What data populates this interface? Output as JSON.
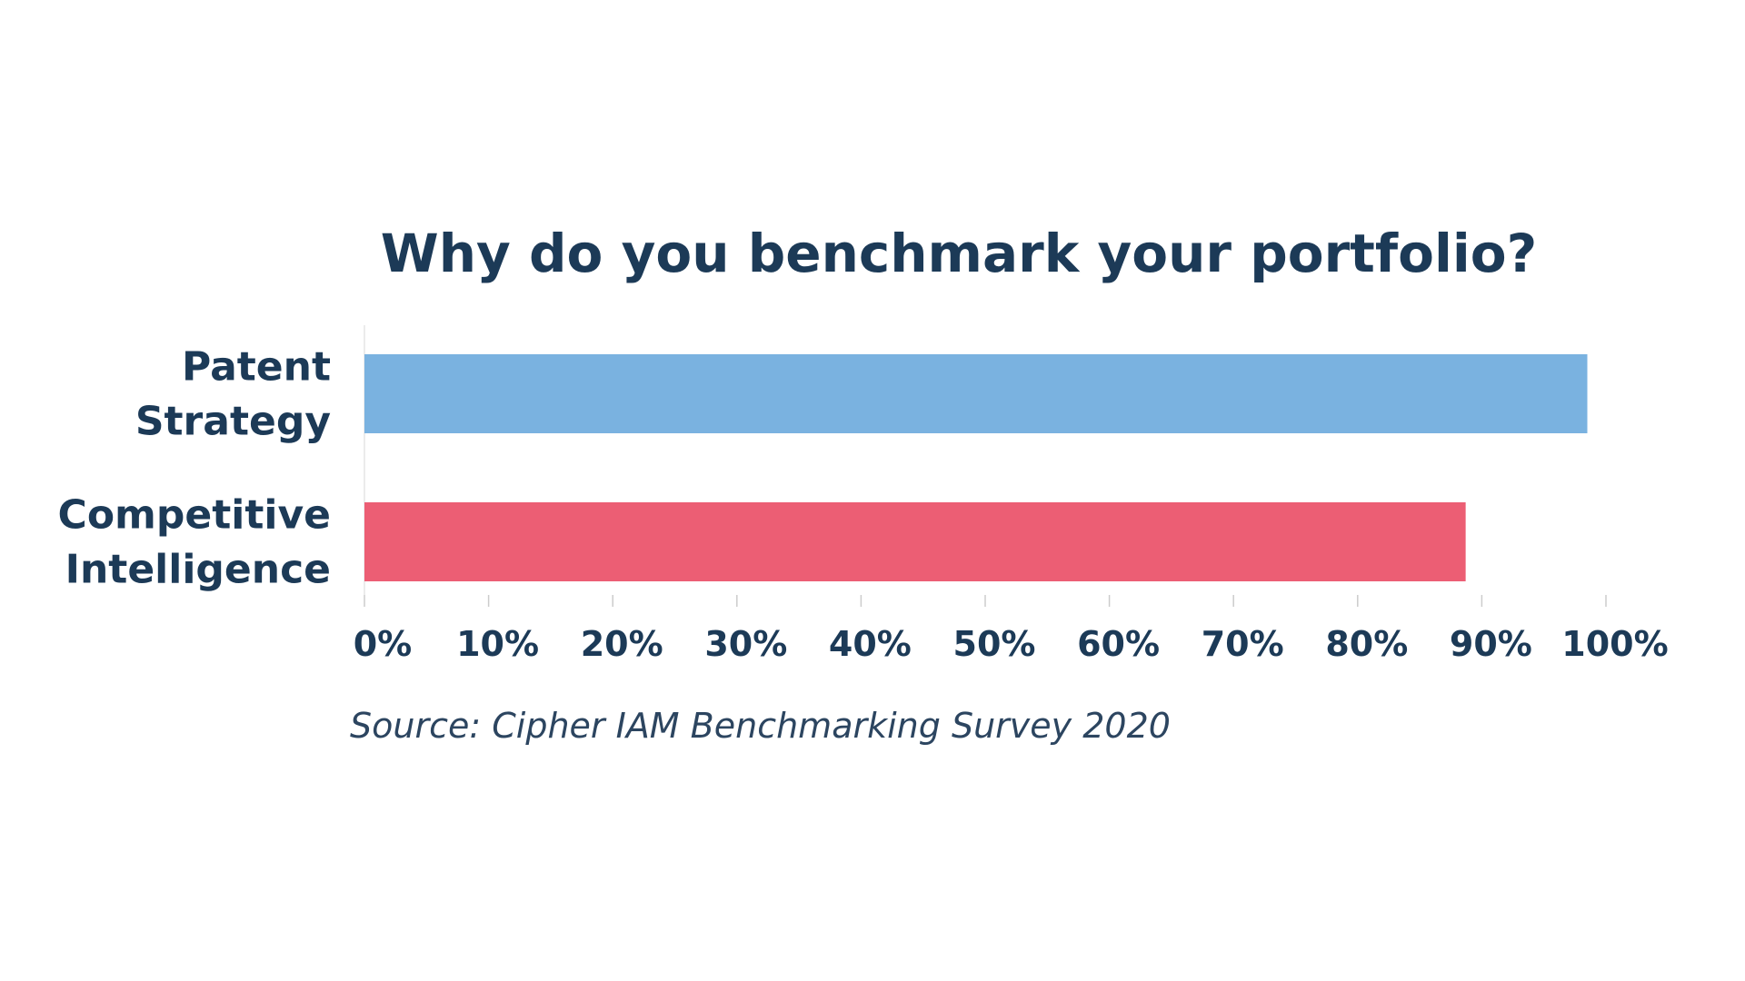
{
  "chart_data": {
    "type": "bar",
    "orientation": "horizontal",
    "title": "Why do you benchmark your portfolio?",
    "categories": [
      [
        "Patent",
        "Strategy"
      ],
      [
        "Competitive",
        "Intelligence"
      ]
    ],
    "values": [
      98.5,
      88.7
    ],
    "value_unit": "%",
    "xlim": [
      0,
      100
    ],
    "xticks": [
      "0%",
      "10%",
      "20%",
      "30%",
      "40%",
      "50%",
      "60%",
      "70%",
      "80%",
      "90%",
      "100%"
    ],
    "colors": [
      "#7ab2e0",
      "#ec5e74"
    ],
    "text_color": "#1c3a57",
    "grid": false,
    "legend": "none",
    "source": "Source: Cipher IAM Benchmarking Survey 2020"
  }
}
